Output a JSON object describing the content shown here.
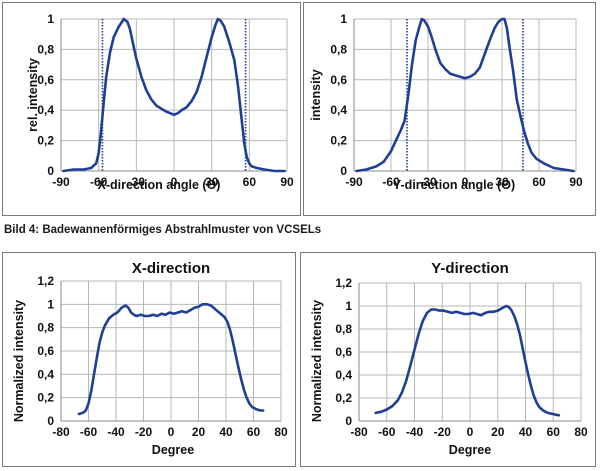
{
  "caption": "Bild 4: Badewannenförmiges Abstrahlmuster von VCSELs",
  "colors": {
    "line": "#1f3f94",
    "grid": "#b7b7b7",
    "marker": "#1f3f94"
  },
  "chart_data": [
    {
      "type": "line",
      "title": "",
      "xlabel": "X-direction angle (Θ)",
      "ylabel": "rel. intensity",
      "xlim": [
        -90,
        90
      ],
      "ylim": [
        0,
        1
      ],
      "xticks": [
        "-90",
        "-60",
        "-30",
        "0",
        "30",
        "60",
        "90"
      ],
      "yticks": [
        "0",
        "0,2",
        "0,4",
        "0,6",
        "0,8",
        "1"
      ],
      "grid": true,
      "markers": [
        -57,
        57
      ],
      "series": [
        {
          "x": [
            -88,
            -80,
            -72,
            -66,
            -62,
            -60,
            -58,
            -56,
            -54,
            -51,
            -48,
            -44,
            -40,
            -37,
            -35,
            -33,
            -30,
            -26,
            -22,
            -18,
            -14,
            -10,
            -6,
            -3,
            0,
            3,
            6,
            10,
            14,
            18,
            22,
            26,
            30,
            33,
            35,
            37,
            40,
            44,
            48,
            51,
            54,
            56,
            58,
            60,
            62,
            66,
            72,
            80,
            88
          ],
          "y": [
            0.0,
            0.01,
            0.01,
            0.02,
            0.05,
            0.12,
            0.27,
            0.45,
            0.62,
            0.78,
            0.88,
            0.95,
            1.0,
            0.98,
            0.93,
            0.85,
            0.74,
            0.62,
            0.53,
            0.47,
            0.43,
            0.41,
            0.39,
            0.38,
            0.37,
            0.38,
            0.4,
            0.42,
            0.46,
            0.52,
            0.62,
            0.75,
            0.88,
            0.96,
            1.0,
            0.99,
            0.95,
            0.85,
            0.73,
            0.56,
            0.33,
            0.18,
            0.09,
            0.05,
            0.03,
            0.02,
            0.01,
            0.0,
            0.0
          ]
        }
      ]
    },
    {
      "type": "line",
      "title": "",
      "xlabel": "Y-direction angle (Θ)",
      "ylabel": "intensity",
      "xlim": [
        -90,
        90
      ],
      "ylim": [
        0,
        1
      ],
      "xticks": [
        "-90",
        "-60",
        "-30",
        "0",
        "30",
        "60",
        "90"
      ],
      "yticks": [
        "0",
        "0,2",
        "0,4",
        "0,6",
        "0,8",
        "1"
      ],
      "grid": true,
      "markers": [
        -47,
        47
      ],
      "series": [
        {
          "x": [
            -88,
            -80,
            -72,
            -66,
            -60,
            -56,
            -52,
            -49,
            -46,
            -43,
            -40,
            -37,
            -35,
            -33,
            -30,
            -27,
            -24,
            -20,
            -16,
            -12,
            -8,
            -4,
            0,
            4,
            8,
            12,
            16,
            20,
            24,
            27,
            30,
            32,
            34,
            36,
            39,
            42,
            45,
            48,
            51,
            54,
            58,
            64,
            72,
            80,
            88
          ],
          "y": [
            0.0,
            0.01,
            0.03,
            0.06,
            0.13,
            0.2,
            0.27,
            0.33,
            0.5,
            0.7,
            0.86,
            0.95,
            1.0,
            0.99,
            0.95,
            0.88,
            0.8,
            0.71,
            0.67,
            0.64,
            0.63,
            0.62,
            0.61,
            0.62,
            0.64,
            0.68,
            0.77,
            0.86,
            0.94,
            0.98,
            1.0,
            1.0,
            0.94,
            0.82,
            0.66,
            0.47,
            0.36,
            0.26,
            0.18,
            0.12,
            0.08,
            0.05,
            0.02,
            0.01,
            0.0
          ]
        }
      ]
    },
    {
      "type": "line",
      "title": "X-direction",
      "xlabel": "Degree",
      "ylabel": "Normalized intensity",
      "xlim": [
        -80,
        80
      ],
      "ylim": [
        0,
        1.2
      ],
      "xticks": [
        "-80",
        "-60",
        "-40",
        "-20",
        "0",
        "20",
        "40",
        "60",
        "80"
      ],
      "yticks": [
        "0",
        "0,2",
        "0,4",
        "0,6",
        "0,8",
        "1",
        "1,2"
      ],
      "grid": true,
      "markers": [],
      "series": [
        {
          "x": [
            -67,
            -64,
            -62,
            -60,
            -58,
            -56,
            -54,
            -52,
            -50,
            -48,
            -45,
            -42,
            -39,
            -36,
            -33,
            -31,
            -29,
            -27,
            -25,
            -22,
            -19,
            -16,
            -13,
            -10,
            -7,
            -4,
            -1,
            2,
            5,
            8,
            11,
            14,
            17,
            20,
            23,
            26,
            29,
            31,
            33,
            35,
            37,
            39,
            41,
            43,
            45,
            47,
            49,
            51,
            53,
            55,
            57,
            59,
            62,
            65,
            67
          ],
          "y": [
            0.06,
            0.07,
            0.09,
            0.15,
            0.26,
            0.4,
            0.54,
            0.67,
            0.76,
            0.82,
            0.88,
            0.91,
            0.93,
            0.97,
            0.99,
            0.97,
            0.93,
            0.91,
            0.9,
            0.91,
            0.9,
            0.9,
            0.91,
            0.9,
            0.92,
            0.91,
            0.93,
            0.92,
            0.93,
            0.94,
            0.93,
            0.95,
            0.97,
            0.98,
            1.0,
            1.0,
            0.99,
            0.97,
            0.95,
            0.93,
            0.91,
            0.89,
            0.85,
            0.78,
            0.68,
            0.57,
            0.46,
            0.36,
            0.27,
            0.2,
            0.15,
            0.12,
            0.1,
            0.09,
            0.09
          ]
        }
      ]
    },
    {
      "type": "line",
      "title": "Y-direction",
      "xlabel": "Degree",
      "ylabel": "Normalized intensity",
      "xlim": [
        -80,
        80
      ],
      "ylim": [
        0,
        1.2
      ],
      "xticks": [
        "-80",
        "-60",
        "-40",
        "-20",
        "0",
        "20",
        "40",
        "60",
        "80"
      ],
      "yticks": [
        "0",
        "0,2",
        "0,4",
        "0,6",
        "0,8",
        "1",
        "1,2"
      ],
      "grid": true,
      "markers": [],
      "series": [
        {
          "x": [
            -68,
            -64,
            -60,
            -56,
            -52,
            -49,
            -46,
            -43,
            -40,
            -37,
            -34,
            -31,
            -28,
            -25,
            -22,
            -19,
            -16,
            -13,
            -10,
            -7,
            -4,
            -1,
            2,
            5,
            8,
            11,
            14,
            17,
            20,
            23,
            26,
            28,
            30,
            32,
            34,
            36,
            38,
            40,
            42,
            44,
            46,
            48,
            50,
            53,
            56,
            60,
            64
          ],
          "y": [
            0.07,
            0.08,
            0.1,
            0.13,
            0.18,
            0.25,
            0.35,
            0.48,
            0.62,
            0.76,
            0.87,
            0.94,
            0.97,
            0.97,
            0.96,
            0.96,
            0.95,
            0.94,
            0.95,
            0.94,
            0.93,
            0.93,
            0.94,
            0.93,
            0.92,
            0.94,
            0.95,
            0.95,
            0.96,
            0.98,
            1.0,
            0.99,
            0.96,
            0.91,
            0.84,
            0.75,
            0.63,
            0.51,
            0.4,
            0.3,
            0.22,
            0.16,
            0.12,
            0.09,
            0.07,
            0.06,
            0.05
          ]
        }
      ]
    }
  ]
}
